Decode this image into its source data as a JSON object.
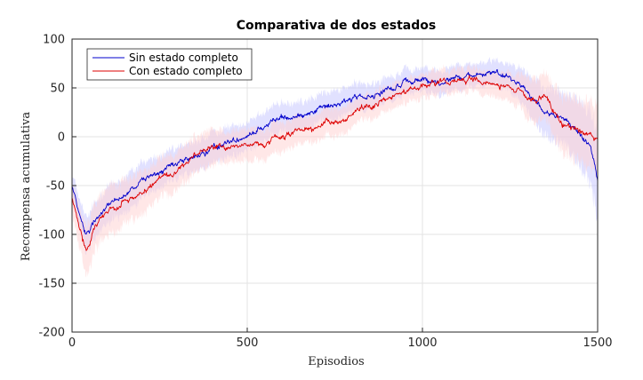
{
  "chart_data": {
    "type": "line",
    "title": "Comparativa de dos estados",
    "xlabel": "Episodios",
    "ylabel": "Recompensa acumulativa",
    "xlim": [
      0,
      1500
    ],
    "ylim": [
      -200,
      100
    ],
    "x_ticks": [
      0,
      500,
      1000,
      1500
    ],
    "y_ticks": [
      -200,
      -150,
      -100,
      -50,
      0,
      50,
      100
    ],
    "grid": true,
    "legend_position": "top-left",
    "series": [
      {
        "name": "Sin estado completo",
        "color": "#0000cc",
        "band_color": "#c8c8ff",
        "x": [
          0,
          15,
          30,
          40,
          50,
          60,
          80,
          100,
          150,
          200,
          250,
          300,
          350,
          400,
          450,
          500,
          550,
          600,
          650,
          700,
          750,
          800,
          850,
          900,
          950,
          1000,
          1050,
          1100,
          1150,
          1200,
          1250,
          1280,
          1300,
          1330,
          1360,
          1390,
          1420,
          1450,
          1480,
          1500
        ],
        "values": [
          -50,
          -70,
          -88,
          -100,
          -98,
          -90,
          -78,
          -70,
          -60,
          -45,
          -38,
          -30,
          -20,
          -12,
          -5,
          0,
          15,
          18,
          22,
          28,
          33,
          38,
          43,
          48,
          55,
          58,
          55,
          62,
          62,
          65,
          60,
          55,
          45,
          35,
          25,
          20,
          12,
          5,
          -10,
          -45
        ],
        "band_half_width": [
          12,
          14,
          16,
          18,
          18,
          18,
          18,
          18,
          18,
          18,
          16,
          16,
          15,
          15,
          15,
          15,
          15,
          15,
          14,
          14,
          14,
          14,
          13,
          13,
          12,
          12,
          12,
          12,
          12,
          12,
          14,
          16,
          20,
          22,
          24,
          26,
          28,
          32,
          38,
          45
        ]
      },
      {
        "name": "Con estado completo",
        "color": "#dd0000",
        "band_color": "#ffd4d4",
        "x": [
          0,
          15,
          30,
          40,
          50,
          60,
          80,
          100,
          150,
          200,
          250,
          300,
          350,
          400,
          450,
          500,
          550,
          600,
          650,
          700,
          750,
          800,
          850,
          900,
          950,
          1000,
          1050,
          1100,
          1150,
          1200,
          1250,
          1280,
          1300,
          1330,
          1350,
          1370,
          1390,
          1420,
          1450,
          1480,
          1500
        ],
        "values": [
          -62,
          -85,
          -105,
          -115,
          -108,
          -98,
          -85,
          -78,
          -65,
          -55,
          -45,
          -35,
          -20,
          -12,
          -10,
          -8,
          -5,
          0,
          5,
          10,
          15,
          22,
          30,
          38,
          45,
          52,
          55,
          58,
          58,
          55,
          50,
          45,
          38,
          35,
          45,
          28,
          15,
          8,
          5,
          2,
          -5
        ],
        "band_half_width": [
          15,
          18,
          22,
          25,
          25,
          25,
          24,
          24,
          22,
          22,
          20,
          20,
          18,
          18,
          16,
          16,
          15,
          15,
          14,
          14,
          14,
          13,
          13,
          13,
          12,
          12,
          12,
          12,
          12,
          12,
          14,
          16,
          20,
          22,
          24,
          26,
          28,
          30,
          32,
          34,
          36
        ]
      }
    ]
  }
}
